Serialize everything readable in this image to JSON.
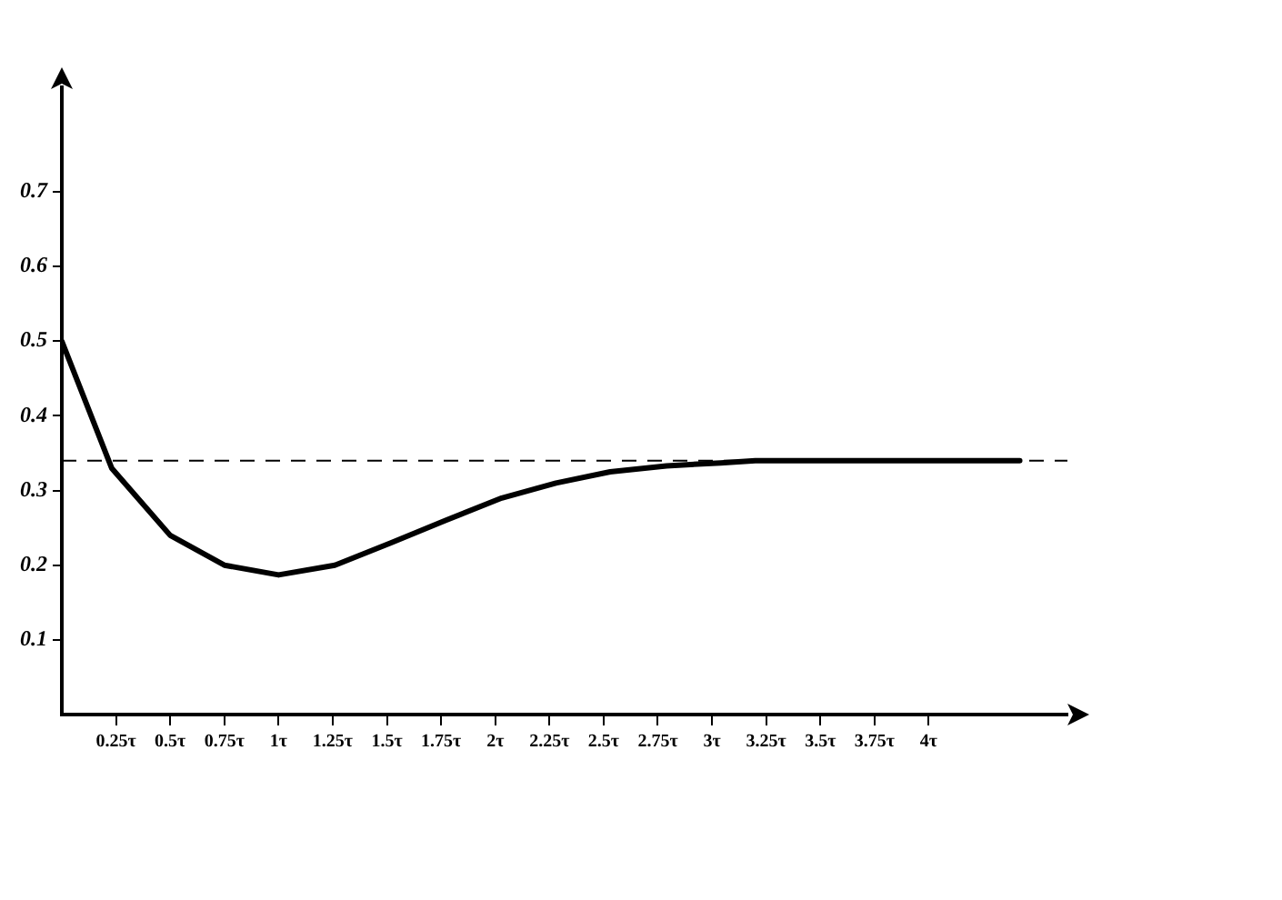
{
  "chart_data": {
    "type": "line",
    "x": [
      0,
      0.23,
      0.5,
      0.75,
      1,
      1.26,
      1.52,
      1.77,
      2.03,
      2.28,
      2.53,
      2.79,
      3.04,
      3.2,
      4.42
    ],
    "series": [
      {
        "color": "#000000",
        "values": [
          0.5,
          0.33,
          0.24,
          0.2,
          0.187,
          0.2,
          0.23,
          0.26,
          0.29,
          0.31,
          0.325,
          0.333,
          0.337,
          0.34,
          0.34
        ]
      }
    ],
    "xlim": [
      0,
      4.64
    ],
    "ylim": [
      0,
      0.84
    ],
    "xticks": [
      {
        "value": 0.25,
        "label": "0.25τ"
      },
      {
        "value": 0.5,
        "label": "0.5τ"
      },
      {
        "value": 0.75,
        "label": "0.75τ"
      },
      {
        "value": 1,
        "label": "1τ"
      },
      {
        "value": 1.25,
        "label": "1.25τ"
      },
      {
        "value": 1.5,
        "label": "1.5τ"
      },
      {
        "value": 1.75,
        "label": "1.75τ"
      },
      {
        "value": 2,
        "label": "2τ"
      },
      {
        "value": 2.25,
        "label": "2.25τ"
      },
      {
        "value": 2.5,
        "label": "2.5τ"
      },
      {
        "value": 2.75,
        "label": "2.75τ"
      },
      {
        "value": 3,
        "label": "3τ"
      },
      {
        "value": 3.25,
        "label": "3.25τ"
      },
      {
        "value": 3.5,
        "label": "3.5τ"
      },
      {
        "value": 3.75,
        "label": "3.75τ"
      },
      {
        "value": 4,
        "label": "4τ"
      }
    ],
    "yticks": [
      0.1,
      0.2,
      0.3,
      0.4,
      0.5,
      0.6,
      0.7
    ],
    "ref_lines": [
      {
        "axis": "y",
        "value": 0.34,
        "line_style": "dashed",
        "color": "#000000"
      }
    ],
    "marker": "none",
    "line_style": "solid",
    "legend": false
  }
}
